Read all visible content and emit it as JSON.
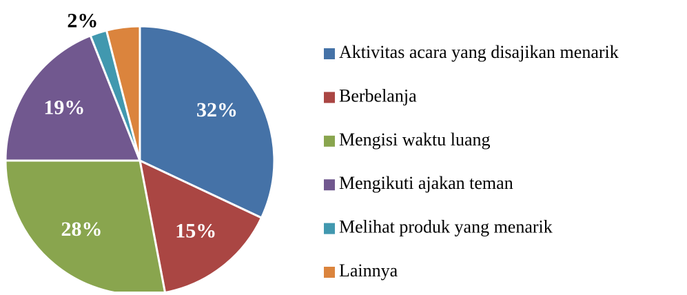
{
  "chart_data": {
    "type": "pie",
    "categories": [
      "Aktivitas acara yang disajikan menarik",
      "Berbelanja",
      "Mengisi waktu luang",
      "Mengikuti ajakan teman",
      "Melihat produk yang menarik",
      "Lainnya"
    ],
    "values": [
      32,
      15,
      28,
      19,
      2,
      4
    ],
    "value_labels": [
      "32%",
      "15%",
      "28%",
      "19%",
      "2%",
      null
    ],
    "colors": [
      "#4572a7",
      "#aa4643",
      "#89a54e",
      "#71588f",
      "#4198af",
      "#db843d"
    ],
    "legend": "right"
  }
}
